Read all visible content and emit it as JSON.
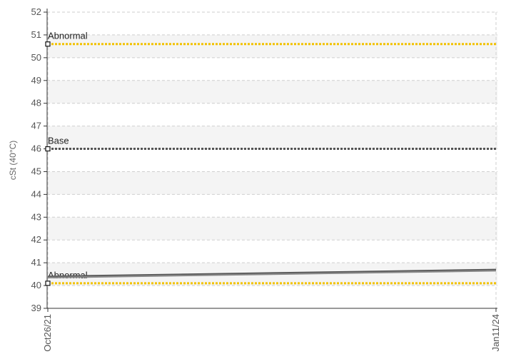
{
  "chart_data": {
    "type": "line",
    "title": "",
    "xlabel": "",
    "ylabel": "cSt (40°C)",
    "ylim": [
      39,
      52
    ],
    "y_ticks": [
      39,
      40,
      41,
      42,
      43,
      44,
      45,
      46,
      47,
      48,
      49,
      50,
      51,
      52
    ],
    "x_tick_labels": [
      "Oct26/21",
      "Jan11/24"
    ],
    "grid": true,
    "alternating_bands": true,
    "reference_lines": [
      {
        "label": "Abnormal",
        "value": 50.6,
        "color": "#f2c200"
      },
      {
        "label": "Base",
        "value": 46.0,
        "color": "#555555"
      },
      {
        "label": "Abnormal",
        "value": 40.1,
        "color": "#f2c200"
      }
    ],
    "series": [
      {
        "color": "#555555",
        "x": [
          "Oct26/21",
          "Jan11/24"
        ],
        "values": [
          40.4,
          40.7
        ]
      },
      {
        "color": "#888888",
        "x": [
          "Oct26/21",
          "Jan11/24"
        ],
        "values": [
          40.35,
          40.65
        ]
      }
    ]
  }
}
